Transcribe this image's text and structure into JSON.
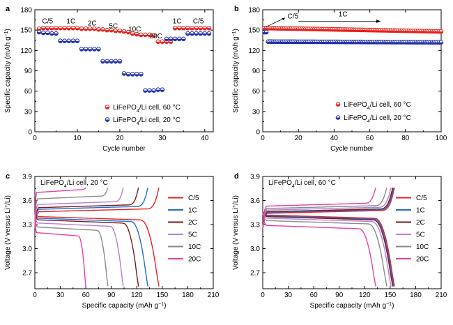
{
  "chart_data": [
    {
      "panel": "a",
      "type": "scatter",
      "xlabel": "Cycle number",
      "ylabel_main": "Specific capacity (mAh g",
      "ylabel_sup": "−1",
      "ylabel_end": ")",
      "xlim": [
        0,
        42
      ],
      "ylim": [
        0,
        180
      ],
      "xticks": [
        "0",
        "10",
        "20",
        "30",
        "40"
      ],
      "yticks": [
        "0",
        "30",
        "60",
        "90",
        "120",
        "150",
        "180"
      ],
      "rate_labels": [
        {
          "text": "C/5",
          "x": 3,
          "y": 160
        },
        {
          "text": "1C",
          "x": 8.5,
          "y": 160
        },
        {
          "text": "2C",
          "x": 13.5,
          "y": 157
        },
        {
          "text": "5C",
          "x": 18.5,
          "y": 153
        },
        {
          "text": "10C",
          "x": 23.5,
          "y": 148
        },
        {
          "text": "20C",
          "x": 28.5,
          "y": 138
        },
        {
          "text": "1C",
          "x": 33.5,
          "y": 160
        },
        {
          "text": "C/5",
          "x": 38.5,
          "y": 160
        }
      ],
      "series": [
        {
          "name_main": "LiFePO",
          "name_sub": "4",
          "name_end": "/Li cell, 60 °C",
          "color": "#e8211d",
          "x": [
            1,
            2,
            3,
            4,
            5,
            6,
            7,
            8,
            9,
            10,
            11,
            12,
            13,
            14,
            15,
            16,
            17,
            18,
            19,
            20,
            21,
            22,
            23,
            24,
            25,
            26,
            27,
            28,
            29,
            30,
            31,
            32,
            33,
            34,
            35,
            36,
            37,
            38,
            39,
            40,
            41
          ],
          "y": [
            152,
            153,
            153,
            153,
            153,
            153,
            153,
            153,
            153,
            153,
            152,
            152,
            152,
            152,
            151,
            151,
            150,
            150,
            149,
            149,
            148,
            147,
            145,
            144,
            143,
            143,
            143,
            142,
            133,
            133,
            133,
            133,
            153,
            153,
            153,
            153,
            153,
            153,
            153,
            153,
            153
          ]
        },
        {
          "name_main": "LiFePO",
          "name_sub": "4",
          "name_end": "/Li cell, 20 °C",
          "color": "#2330a8",
          "x": [
            1,
            2,
            3,
            4,
            5,
            6,
            7,
            8,
            9,
            10,
            11,
            12,
            13,
            14,
            15,
            16,
            17,
            18,
            19,
            20,
            21,
            22,
            23,
            24,
            25,
            26,
            27,
            28,
            29,
            30,
            31,
            32,
            33,
            34,
            35,
            36,
            37,
            38,
            39,
            40,
            41
          ],
          "y": [
            147,
            146,
            146,
            145,
            145,
            134,
            134,
            134,
            134,
            134,
            122,
            122,
            122,
            122,
            122,
            104,
            104,
            104,
            104,
            104,
            86,
            85,
            85,
            85,
            85,
            61,
            61,
            61,
            62,
            62,
            137,
            137,
            137,
            137,
            137,
            145,
            145,
            145,
            145,
            145,
            145
          ]
        }
      ]
    },
    {
      "panel": "b",
      "type": "scatter",
      "xlabel": "Cycle number",
      "ylabel_main": "Specific capacity (mAh g",
      "ylabel_sup": "−1",
      "ylabel_end": ")",
      "xlim": [
        0,
        100
      ],
      "ylim": [
        0,
        180
      ],
      "xticks": [
        "0",
        "20",
        "40",
        "60",
        "80",
        "100"
      ],
      "yticks": [
        "0",
        "30",
        "60",
        "90",
        "120",
        "150",
        "180"
      ],
      "annotations": [
        "C/5",
        "1C"
      ],
      "series": [
        {
          "name_main": "LiFePO",
          "name_sub": "4",
          "name_end": "/Li cell, 60 °C",
          "color": "#e8211d",
          "start": 153,
          "end": 148,
          "points": 100
        },
        {
          "name_main": "LiFePO",
          "name_sub": "4",
          "name_end": "/Li cell, 20 °C",
          "color": "#2330a8",
          "start": 133,
          "end": 132,
          "points": 100
        }
      ]
    },
    {
      "panel": "c",
      "type": "line",
      "title": "LiFePO",
      "title_sub": "4",
      "title_end": "/Li cell, 20 °C",
      "xlabel": "Specific capacity (mAh g",
      "xlabel_sup": "−1",
      "xlabel_end": ")",
      "ylabel_main": "Voltage (V versus Li",
      "ylabel_sup": "+",
      "ylabel_end": "/Li)",
      "xlim": [
        0,
        210
      ],
      "ylim": [
        2.5,
        3.9
      ],
      "xticks": [
        "0",
        "30",
        "60",
        "90",
        "120",
        "150",
        "180",
        "210"
      ],
      "yticks": [
        "2.7",
        "3.0",
        "3.3",
        "3.6",
        "3.9"
      ],
      "series": [
        {
          "name": "C/5",
          "color": "#e8211d",
          "cap": 146,
          "charge": 3.46,
          "discharge": 3.4
        },
        {
          "name": "1C",
          "color": "#1f6fd1",
          "cap": 133,
          "charge": 3.49,
          "discharge": 3.38
        },
        {
          "name": "2C",
          "color": "#7a1a1a",
          "cap": 122,
          "charge": 3.51,
          "discharge": 3.36
        },
        {
          "name": "5C",
          "color": "#b67fd6",
          "cap": 104,
          "charge": 3.55,
          "discharge": 3.32
        },
        {
          "name": "10C",
          "color": "#8a8a8a",
          "cap": 86,
          "charge": 3.62,
          "discharge": 3.27
        },
        {
          "name": "20C",
          "color": "#ec3fa6",
          "cap": 60,
          "charge": 3.7,
          "discharge": 3.2
        }
      ]
    },
    {
      "panel": "d",
      "type": "line",
      "title": "LiFePO",
      "title_sub": "4",
      "title_end": "/Li cell, 60 °C",
      "xlabel": "Specific capacity (mAh g",
      "xlabel_sup": "−1",
      "xlabel_end": ")",
      "ylabel_main": "Voltage (V versus Li",
      "ylabel_sup": "+",
      "ylabel_end": "/Li)",
      "xlim": [
        0,
        210
      ],
      "ylim": [
        2.5,
        3.9
      ],
      "xticks": [
        "0",
        "30",
        "60",
        "90",
        "120",
        "150",
        "180",
        "210"
      ],
      "yticks": [
        "2.7",
        "3.0",
        "3.3",
        "3.6",
        "3.9"
      ],
      "series": [
        {
          "name": "C/5",
          "color": "#e8211d",
          "cap": 155,
          "charge": 3.44,
          "discharge": 3.42
        },
        {
          "name": "1C",
          "color": "#1f6fd1",
          "cap": 154,
          "charge": 3.45,
          "discharge": 3.41
        },
        {
          "name": "2C",
          "color": "#7a1a1a",
          "cap": 153,
          "charge": 3.46,
          "discharge": 3.4
        },
        {
          "name": "5C",
          "color": "#b67fd6",
          "cap": 151,
          "charge": 3.48,
          "discharge": 3.38
        },
        {
          "name": "10C",
          "color": "#8a8a8a",
          "cap": 146,
          "charge": 3.5,
          "discharge": 3.35
        },
        {
          "name": "20C",
          "color": "#ec3fa6",
          "cap": 133,
          "charge": 3.53,
          "discharge": 3.29
        }
      ]
    }
  ]
}
